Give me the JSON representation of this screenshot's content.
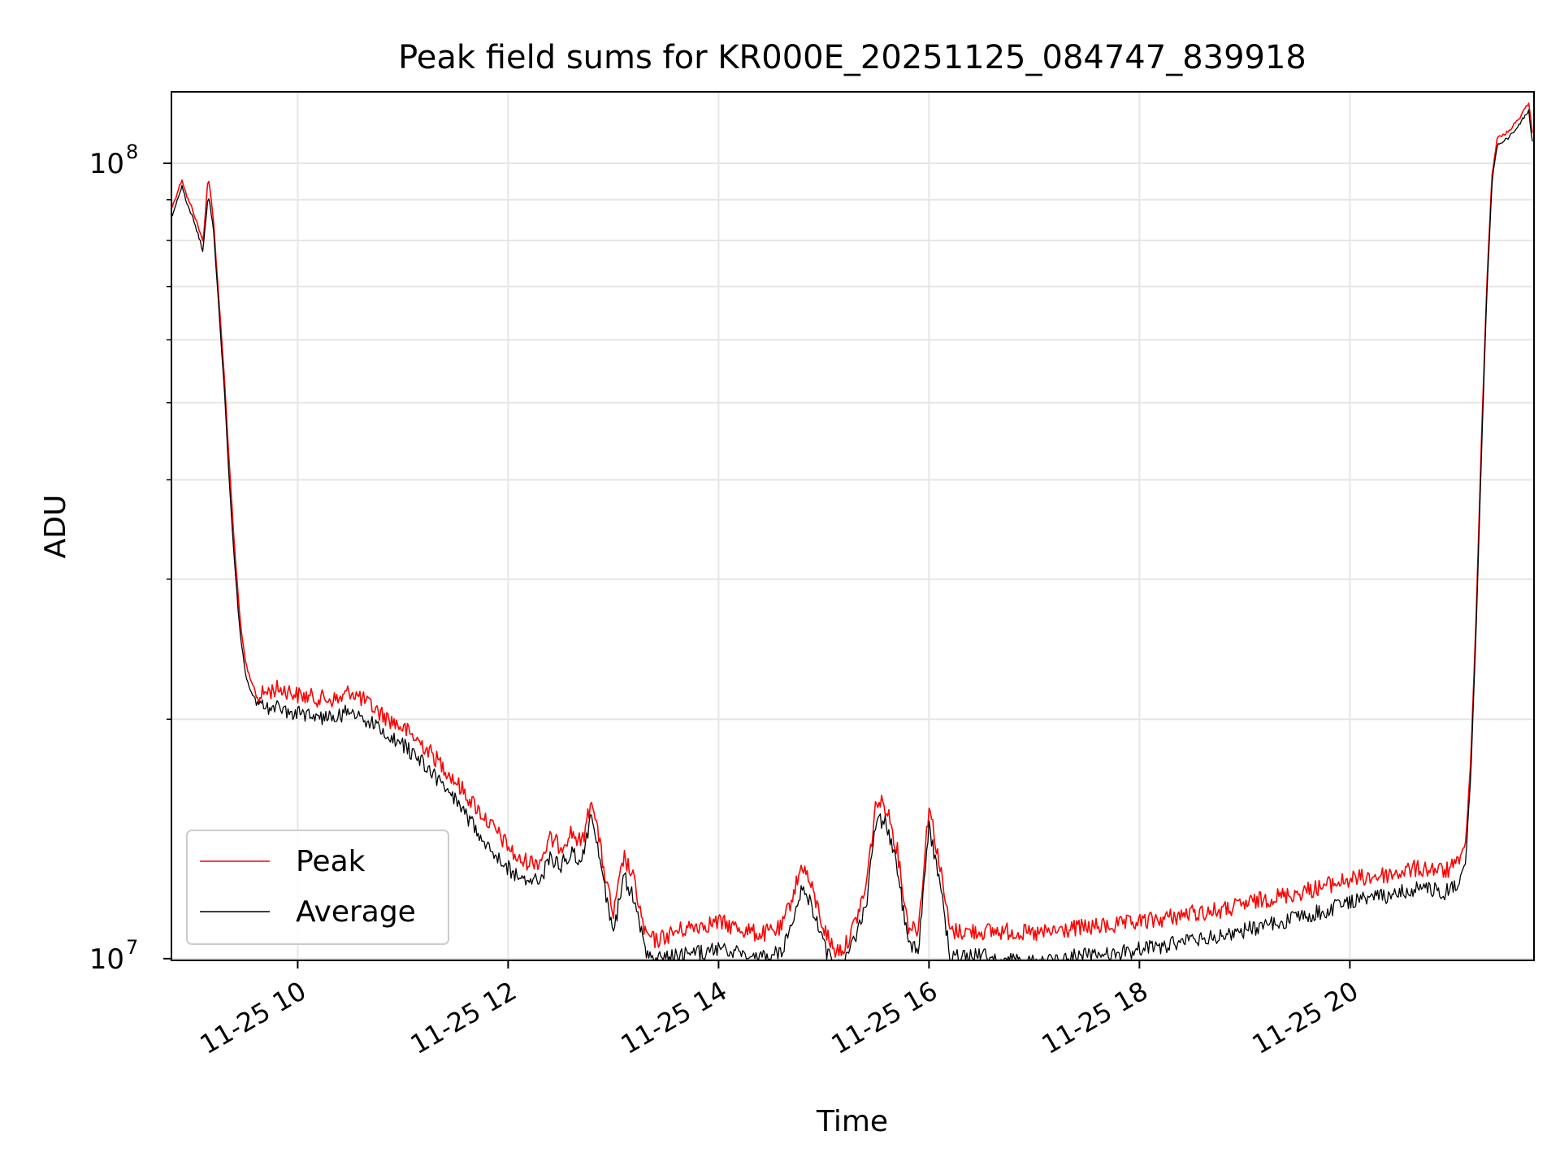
{
  "chart_data": {
    "type": "line",
    "title": "Peak field sums for KR000E_20251125_084747_839918",
    "xlabel": "Time",
    "ylabel": "ADU",
    "yscale": "log",
    "ylim": [
      9950000,
      123000000
    ],
    "xlim_hours": [
      8.8,
      21.75
    ],
    "grid": true,
    "legend_position": "lower-left",
    "x_ticks": [
      {
        "hour": 10,
        "label": "11-25 10"
      },
      {
        "hour": 12,
        "label": "11-25 12"
      },
      {
        "hour": 14,
        "label": "11-25 14"
      },
      {
        "hour": 16,
        "label": "11-25 16"
      },
      {
        "hour": 18,
        "label": "11-25 18"
      },
      {
        "hour": 20,
        "label": "11-25 20"
      }
    ],
    "y_ticks": [
      {
        "value": 10000000,
        "base": "10",
        "exp": "7"
      },
      {
        "value": 100000000,
        "base": "10",
        "exp": "8"
      }
    ],
    "series": [
      {
        "name": "Peak",
        "color": "#ff0000",
        "hours": [
          8.8,
          8.9,
          8.95,
          9.0,
          9.05,
          9.1,
          9.15,
          9.2,
          9.25,
          9.3,
          9.35,
          9.4,
          9.45,
          9.5,
          9.55,
          9.6,
          9.7,
          9.8,
          9.9,
          10.0,
          10.2,
          10.4,
          10.5,
          10.8,
          11.0,
          11.2,
          11.4,
          11.6,
          11.8,
          12.0,
          12.1,
          12.3,
          12.4,
          12.5,
          12.6,
          12.7,
          12.8,
          12.9,
          13.0,
          13.1,
          13.2,
          13.3,
          13.4,
          13.6,
          13.8,
          14.0,
          14.2,
          14.4,
          14.6,
          14.8,
          14.9,
          15.0,
          15.1,
          15.2,
          15.3,
          15.4,
          15.5,
          15.6,
          15.7,
          15.8,
          15.9,
          16.0,
          16.1,
          16.2,
          16.4,
          16.6,
          16.8,
          17.0,
          17.4,
          17.8,
          18.0,
          18.2,
          18.5,
          18.8,
          19.0,
          19.2,
          19.5,
          19.8,
          20.0,
          20.2,
          20.4,
          20.6,
          20.8,
          20.9,
          21.0,
          21.05,
          21.1,
          21.15,
          21.2,
          21.25,
          21.3,
          21.35,
          21.4,
          21.5,
          21.6,
          21.7,
          21.75
        ],
        "values": [
          88000000,
          96000000,
          91000000,
          88000000,
          84000000,
          80000000,
          97000000,
          85000000,
          68000000,
          55000000,
          42000000,
          33000000,
          27000000,
          23800000,
          22500000,
          21800000,
          22200000,
          22400000,
          22300000,
          22000000,
          21800000,
          21700000,
          22300000,
          20800000,
          20000000,
          19000000,
          17800000,
          16500000,
          15300000,
          14200000,
          13600000,
          13600000,
          14500000,
          14200000,
          14800000,
          14300000,
          16400000,
          13500000,
          11600000,
          13800000,
          12800000,
          11000000,
          10800000,
          11100000,
          11300000,
          11400000,
          11200000,
          11000000,
          11200000,
          13500000,
          12400000,
          11200000,
          10500000,
          10600000,
          11400000,
          12600000,
          16200000,
          15900000,
          14000000,
          11300000,
          11200000,
          16000000,
          13500000,
          11100000,
          11100000,
          11100000,
          11100000,
          11000000,
          11200000,
          11300000,
          11400000,
          11500000,
          11700000,
          11800000,
          12000000,
          12200000,
          12400000,
          12700000,
          12900000,
          13000000,
          13100000,
          13300000,
          13300000,
          13200000,
          13400000,
          13600000,
          14000000,
          18000000,
          27000000,
          45000000,
          70000000,
          97000000,
          108000000,
          110000000,
          114000000,
          120000000,
          105000000
        ]
      },
      {
        "name": "Average",
        "color": "#000000",
        "hours": [
          8.8,
          8.9,
          8.95,
          9.0,
          9.05,
          9.1,
          9.15,
          9.2,
          9.25,
          9.3,
          9.35,
          9.4,
          9.45,
          9.5,
          9.55,
          9.6,
          9.7,
          9.8,
          9.9,
          10.0,
          10.2,
          10.4,
          10.5,
          10.8,
          11.0,
          11.2,
          11.4,
          11.6,
          11.8,
          12.0,
          12.1,
          12.3,
          12.4,
          12.5,
          12.6,
          12.7,
          12.8,
          12.9,
          13.0,
          13.1,
          13.2,
          13.3,
          13.4,
          13.6,
          13.8,
          14.0,
          14.2,
          14.4,
          14.6,
          14.8,
          14.9,
          15.0,
          15.1,
          15.2,
          15.3,
          15.4,
          15.5,
          15.6,
          15.7,
          15.8,
          15.9,
          16.0,
          16.1,
          16.2,
          16.4,
          16.6,
          16.8,
          17.0,
          17.4,
          17.8,
          18.0,
          18.2,
          18.5,
          18.8,
          19.0,
          19.2,
          19.5,
          19.8,
          20.0,
          20.2,
          20.4,
          20.6,
          20.8,
          20.9,
          21.0,
          21.05,
          21.1,
          21.15,
          21.2,
          21.25,
          21.3,
          21.35,
          21.4,
          21.5,
          21.6,
          21.7,
          21.75
        ],
        "values": [
          86000000,
          94000000,
          89000000,
          86000000,
          82000000,
          78000000,
          92000000,
          83000000,
          66000000,
          53000000,
          40000000,
          31500000,
          26000000,
          23000000,
          21800000,
          21300000,
          21200000,
          21200000,
          21000000,
          20800000,
          20600000,
          20700000,
          21000000,
          19800000,
          19000000,
          18000000,
          16800000,
          15500000,
          14300000,
          13300000,
          12900000,
          12800000,
          13700000,
          13400000,
          14000000,
          13500000,
          15600000,
          12800000,
          11000000,
          13000000,
          12100000,
          10500000,
          10200000,
          10300000,
          10400000,
          10500000,
          10400000,
          10300000,
          10400000,
          12700000,
          11700000,
          10600000,
          10000000,
          10100000,
          10800000,
          11900000,
          15400000,
          15100000,
          13300000,
          10700000,
          10600000,
          15000000,
          12800000,
          10300000,
          10300000,
          10300000,
          10200000,
          10100000,
          10300000,
          10400000,
          10500000,
          10600000,
          10800000,
          10900000,
          11100000,
          11300000,
          11500000,
          11800000,
          12100000,
          12200000,
          12300000,
          12500000,
          12500000,
          12400000,
          12600000,
          12800000,
          13300000,
          17200000,
          26000000,
          43000000,
          68000000,
          95000000,
          106000000,
          108000000,
          112000000,
          117000000,
          103000000
        ]
      }
    ]
  }
}
